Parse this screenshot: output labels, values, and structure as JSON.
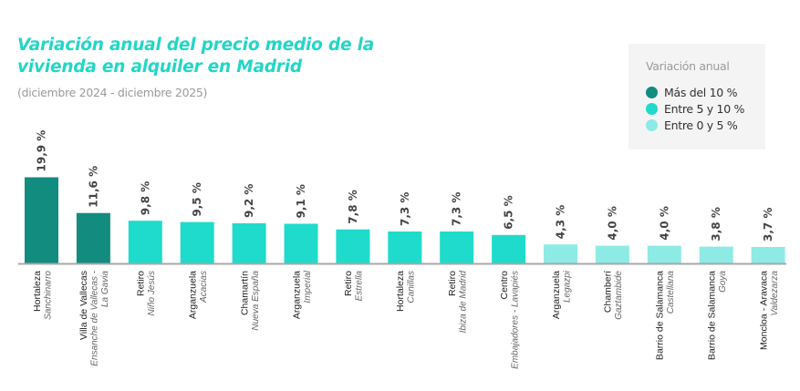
{
  "chart_data": {
    "type": "bar",
    "title": "Variación anual del precio medio de la vivienda en alquiler en Madrid",
    "title_lines": [
      "Variación anual del precio medio de la",
      "vivienda en alquiler en Madrid"
    ],
    "subtitle": "(diciembre 2024 - diciembre 2025)",
    "xlabel": "",
    "ylabel": "",
    "ylim": [
      0,
      20
    ],
    "grid": false,
    "categories": [
      {
        "district": "Hortaleza",
        "neighborhood": [
          "Sanchinarro"
        ]
      },
      {
        "district": "Villa de Vallecas",
        "neighborhood": [
          "Ensanche de Vallecas -",
          "La Gavia"
        ]
      },
      {
        "district": "Retiro",
        "neighborhood": [
          "Niño Jesús"
        ]
      },
      {
        "district": "Arganzuela",
        "neighborhood": [
          "Acacias"
        ]
      },
      {
        "district": "Chamartín",
        "neighborhood": [
          "Nueva España"
        ]
      },
      {
        "district": "Arganzuela",
        "neighborhood": [
          "Imperial"
        ]
      },
      {
        "district": "Retiro",
        "neighborhood": [
          "Estrella"
        ]
      },
      {
        "district": "Hortaleza",
        "neighborhood": [
          "Canillas"
        ]
      },
      {
        "district": "Retiro",
        "neighborhood": [
          "Ibiza de Madrid"
        ]
      },
      {
        "district": "Centro",
        "neighborhood": [
          "Embajadores - Lavapiés"
        ]
      },
      {
        "district": "Arganzuela",
        "neighborhood": [
          "Legazpi"
        ]
      },
      {
        "district": "Chamberí",
        "neighborhood": [
          "Gaztambide"
        ]
      },
      {
        "district": "Barrio de Salamanca",
        "neighborhood": [
          "Castellana"
        ]
      },
      {
        "district": "Barrio de Salamanca",
        "neighborhood": [
          "Goya"
        ]
      },
      {
        "district": "Moncloa - Aravaca",
        "neighborhood": [
          "Valdezarza"
        ]
      }
    ],
    "values": [
      19.9,
      11.6,
      9.8,
      9.5,
      9.2,
      9.1,
      7.8,
      7.3,
      7.3,
      6.5,
      4.3,
      4.0,
      4.0,
      3.8,
      3.7
    ],
    "value_labels": [
      "19,9 %",
      "11,6 %",
      "9,8 %",
      "9,5 %",
      "9,2 %",
      "9,1 %",
      "7,8 %",
      "7,3 %",
      "7,3 %",
      "6,5 %",
      "4,3 %",
      "4,0 %",
      "4,0 %",
      "3,8 %",
      "3,7 %"
    ],
    "legend": {
      "title": "Variación anual",
      "position": "top-right",
      "items": [
        {
          "label": "Más del 10 %",
          "color": "#138c80",
          "min": 10
        },
        {
          "label": "Entre 5 y 10 %",
          "color": "#1fdbcb",
          "min": 5
        },
        {
          "label": "Entre 0 y 5 %",
          "color": "#8eeae4",
          "min": 0
        }
      ]
    },
    "colors": {
      "title": "#22d6c6",
      "axis": "#a8a8a8"
    }
  }
}
